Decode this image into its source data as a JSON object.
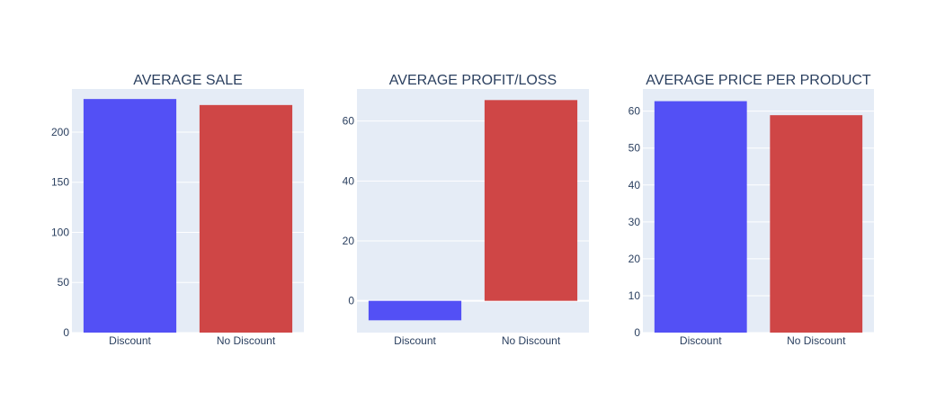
{
  "chart_data": [
    {
      "type": "bar",
      "title": "AVERAGE SALE",
      "categories": [
        "Discount",
        "No Discount"
      ],
      "values": [
        233,
        227
      ],
      "colors": [
        "#5350f5",
        "#cf4646"
      ],
      "ylim": [
        0,
        243
      ],
      "yticks": [
        0,
        50,
        100,
        150,
        200
      ],
      "grid": true,
      "xlabel": "",
      "ylabel": ""
    },
    {
      "type": "bar",
      "title": "AVERAGE PROFIT/LOSS",
      "categories": [
        "Discount",
        "No Discount"
      ],
      "values": [
        -6.5,
        67
      ],
      "colors": [
        "#5350f5",
        "#cf4646"
      ],
      "ylim": [
        -10.6,
        70.7
      ],
      "yticks": [
        0,
        20,
        40,
        60
      ],
      "grid": true,
      "xlabel": "",
      "ylabel": ""
    },
    {
      "type": "bar",
      "title": "AVERAGE PRICE PER PRODUCT",
      "categories": [
        "Discount",
        "No Discount"
      ],
      "values": [
        62.7,
        58.9
      ],
      "colors": [
        "#5350f5",
        "#cf4646"
      ],
      "ylim": [
        0,
        66
      ],
      "yticks": [
        0,
        10,
        20,
        30,
        40,
        50,
        60
      ],
      "grid": true,
      "xlabel": "",
      "ylabel": ""
    }
  ]
}
